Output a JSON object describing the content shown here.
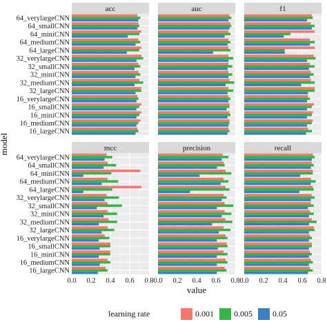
{
  "chart_data": {
    "type": "bar",
    "orientation": "horizontal",
    "facet_by": "metric",
    "facets": [
      "acc",
      "auc",
      "f1",
      "mcc",
      "precision",
      "recall"
    ],
    "categories": [
      "64_verylargeCNN",
      "64_smallCNN",
      "64_miniCNN",
      "64_mediumCNN",
      "64_largeCNN",
      "32_verylargeCNN",
      "32_smallCNN",
      "32_miniCNN",
      "32_mediumCNN",
      "32_largeCNN",
      "16_verylargeCNN",
      "16_smallCNN",
      "16_miniCNN",
      "16_mediumCNN",
      "16_largeCNN"
    ],
    "xlabel": "value",
    "ylabel": "model",
    "xlim": [
      0,
      0.8
    ],
    "xticks": [
      "0.0",
      "0.2",
      "0.4",
      "0.6",
      "0.8"
    ],
    "grid": true,
    "legend": {
      "title": "learning rate",
      "position": "bottom"
    },
    "series_colors": {
      "0.001": "#F8766D",
      "0.005": "#37B34A",
      "0.05": "#3A7FC1"
    },
    "series": [
      {
        "name": "0.001",
        "values": {
          "acc": [
            0.68,
            0.69,
            0.72,
            0.69,
            0.72,
            0.72,
            0.69,
            0.69,
            0.7,
            0.72,
            0.68,
            0.72,
            0.72,
            0.71,
            0.68
          ],
          "auc": [
            0.74,
            0.75,
            0.73,
            0.73,
            0.73,
            0.73,
            0.73,
            0.73,
            0.74,
            0.73,
            0.73,
            0.74,
            0.74,
            0.74,
            0.73
          ],
          "f1": [
            0.7,
            0.69,
            0.73,
            0.68,
            0.73,
            0.72,
            0.68,
            0.69,
            0.69,
            0.73,
            0.66,
            0.72,
            0.71,
            0.71,
            0.66
          ],
          "mcc": [
            0.36,
            0.37,
            0.71,
            0.37,
            0.72,
            0.36,
            0.37,
            0.37,
            0.38,
            0.37,
            0.34,
            0.4,
            0.4,
            0.37,
            0.35
          ],
          "precision": [
            0.67,
            0.68,
            0.7,
            0.68,
            0.7,
            0.68,
            0.69,
            0.69,
            0.7,
            0.68,
            0.7,
            0.71,
            0.68,
            0.7,
            0.69
          ],
          "recall": [
            0.71,
            0.7,
            0.71,
            0.69,
            0.71,
            0.7,
            0.69,
            0.68,
            0.7,
            0.72,
            0.68,
            0.7,
            0.68,
            0.69,
            0.68
          ]
        }
      },
      {
        "name": "0.005",
        "values": {
          "acc": [
            0.71,
            0.7,
            0.7,
            0.71,
            0.7,
            0.74,
            0.71,
            0.71,
            0.74,
            0.72,
            0.69,
            0.7,
            0.7,
            0.69,
            0.69
          ],
          "auc": [
            0.76,
            0.76,
            0.75,
            0.75,
            0.75,
            0.78,
            0.77,
            0.77,
            0.79,
            0.78,
            0.75,
            0.74,
            0.75,
            0.74,
            0.74
          ],
          "f1": [
            0.71,
            0.73,
            0.48,
            0.73,
            0.42,
            0.74,
            0.73,
            0.72,
            0.73,
            0.73,
            0.68,
            0.7,
            0.7,
            0.7,
            0.7
          ],
          "mcc": [
            0.42,
            0.46,
            0.41,
            0.48,
            0.42,
            0.49,
            0.52,
            0.47,
            0.47,
            0.44,
            0.39,
            0.4,
            0.4,
            0.4,
            0.37
          ],
          "precision": [
            0.73,
            0.69,
            0.76,
            0.73,
            0.74,
            0.71,
            0.78,
            0.76,
            0.77,
            0.75,
            0.72,
            0.72,
            0.72,
            0.72,
            0.71
          ],
          "recall": [
            0.73,
            0.72,
            0.71,
            0.74,
            0.72,
            0.73,
            0.72,
            0.72,
            0.75,
            0.73,
            0.7,
            0.7,
            0.7,
            0.71,
            0.71
          ]
        }
      },
      {
        "name": "0.05",
        "values": {
          "acc": [
            0.69,
            0.68,
            0.58,
            0.66,
            0.57,
            0.67,
            0.65,
            0.66,
            0.65,
            0.66,
            0.67,
            0.67,
            0.67,
            0.67,
            0.66
          ],
          "auc": [
            0.73,
            0.74,
            0.69,
            0.72,
            0.57,
            0.73,
            0.72,
            0.73,
            0.7,
            0.72,
            0.73,
            0.71,
            0.72,
            0.73,
            0.72
          ],
          "f1": [
            0.65,
            0.7,
            0.41,
            0.68,
            0.42,
            0.65,
            0.67,
            0.68,
            0.59,
            0.66,
            0.65,
            0.65,
            0.65,
            0.65,
            0.64
          ],
          "mcc": [
            0.34,
            0.33,
            0.12,
            0.31,
            0.12,
            0.34,
            0.26,
            0.33,
            0.28,
            0.31,
            0.28,
            0.29,
            0.28,
            0.29,
            0.27
          ],
          "precision": [
            0.66,
            0.61,
            0.43,
            0.65,
            0.33,
            0.66,
            0.61,
            0.66,
            0.56,
            0.63,
            0.61,
            0.62,
            0.61,
            0.61,
            0.61
          ],
          "recall": [
            0.7,
            0.69,
            0.58,
            0.69,
            0.57,
            0.69,
            0.66,
            0.67,
            0.67,
            0.67,
            0.67,
            0.67,
            0.67,
            0.67,
            0.66
          ]
        }
      }
    ]
  }
}
